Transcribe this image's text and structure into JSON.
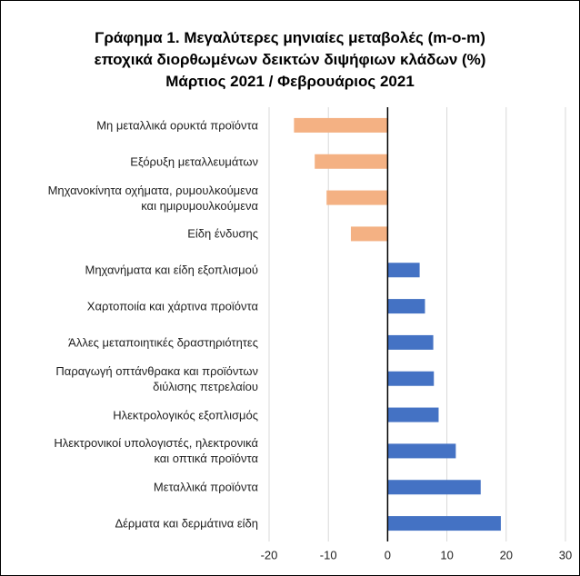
{
  "chart_data": {
    "type": "barh",
    "title": "Γράφημα 1. Μεγαλύτερες μηνιαίες μεταβολές (m-o-m)\nεποχικά διορθωμένων δεικτών διψήφιων κλάδων (%)\nΜάρτιος 2021 / Φεβρουάριος 2021",
    "categories": [
      "Μη μεταλλικά ορυκτά προϊόντα",
      "Εξόρυξη μεταλλευμάτων",
      "Μηχανοκίνητα οχήματα, ρυμουλκούμενα\nκαι ημιρυμουλκούμενα",
      "Είδη ένδυσης",
      "Μηχανήματα και είδη εξοπλισμού",
      "Χαρτοποιία και χάρτινα προϊόντα",
      "Άλλες μεταποιητικές δραστηριότητες",
      "Παραγωγή οπτάνθρακα και προϊόντων\nδιύλισης πετρελαίου",
      "Ηλεκτρολογικός εξοπλισμός",
      "Ηλεκτρονικοί υπολογιστές, ηλεκτρονικά\nκαι οπτικά προϊόντα",
      "Μεταλλικά προϊόντα",
      "Δέρματα και δερμάτινα είδη"
    ],
    "values": [
      -15.8,
      -12.3,
      -10.3,
      -6.2,
      5.4,
      6.3,
      7.7,
      7.8,
      8.6,
      11.5,
      15.7,
      19.1
    ],
    "color_negative": "#f4b183",
    "color_positive": "#4472c4",
    "xlim": [
      -20,
      30
    ],
    "xticks": [
      -20,
      -10,
      0,
      10,
      20,
      30
    ],
    "grid": true
  }
}
